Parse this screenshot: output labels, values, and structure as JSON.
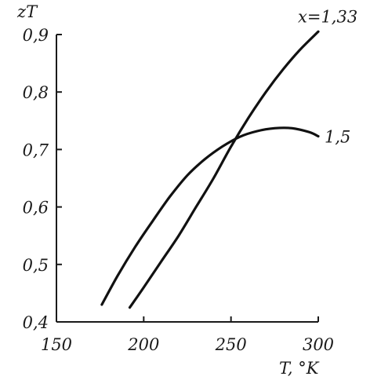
{
  "chart_data": {
    "type": "line",
    "ylabel": "zT",
    "xlabel": "T, °K",
    "xlim": [
      150,
      300
    ],
    "ylim": [
      0.4,
      0.9
    ],
    "x_ticks": [
      150,
      200,
      250,
      300
    ],
    "x_tick_labels": [
      "150",
      "200",
      "250",
      "300"
    ],
    "y_ticks": [
      0.4,
      0.5,
      0.6,
      0.7,
      0.8,
      0.9
    ],
    "y_tick_labels": [
      "0,4",
      "0,5",
      "0,6",
      "0,7",
      "0,8",
      "0,9"
    ],
    "grid": false,
    "series": [
      {
        "name": "x=1,33",
        "x": [
          192,
          200,
          210,
          220,
          230,
          240,
          250,
          260,
          270,
          280,
          290,
          300
        ],
        "y": [
          0.425,
          0.46,
          0.505,
          0.55,
          0.6,
          0.65,
          0.705,
          0.755,
          0.8,
          0.84,
          0.875,
          0.905
        ]
      },
      {
        "name": "1,5",
        "x": [
          176,
          185,
          195,
          205,
          215,
          225,
          235,
          245,
          255,
          265,
          275,
          285,
          295,
          300
        ],
        "y": [
          0.43,
          0.48,
          0.53,
          0.575,
          0.618,
          0.655,
          0.683,
          0.705,
          0.722,
          0.732,
          0.737,
          0.737,
          0.73,
          0.723
        ]
      }
    ]
  }
}
